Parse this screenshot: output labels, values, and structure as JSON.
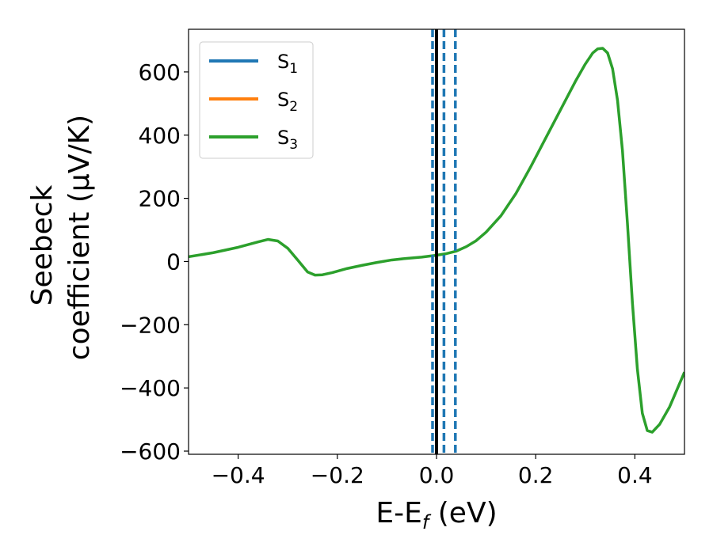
{
  "chart_data": {
    "type": "line",
    "xlabel": {
      "main": "E-E",
      "sub": "f",
      "unit": " (eV)"
    },
    "ylabel": {
      "line1": "Seebeck",
      "line2": "coefficient  (μV/K)"
    },
    "xlim": [
      -0.5,
      0.5
    ],
    "ylim": [
      -610,
      735
    ],
    "x_ticks": [
      {
        "value": -0.4,
        "label": "−0.4"
      },
      {
        "value": -0.2,
        "label": "−0.2"
      },
      {
        "value": 0.0,
        "label": "0.0"
      },
      {
        "value": 0.2,
        "label": "0.2"
      },
      {
        "value": 0.4,
        "label": "0.4"
      }
    ],
    "y_ticks": [
      {
        "value": -600,
        "label": "−600"
      },
      {
        "value": -400,
        "label": "−400"
      },
      {
        "value": -200,
        "label": "−200"
      },
      {
        "value": 0,
        "label": "0"
      },
      {
        "value": 200,
        "label": "200"
      },
      {
        "value": 400,
        "label": "400"
      },
      {
        "value": 600,
        "label": "600"
      }
    ],
    "legend": {
      "placement": "upper-left",
      "entries": [
        {
          "base": "S",
          "sub": "1",
          "color": "#1f77b4"
        },
        {
          "base": "S",
          "sub": "2",
          "color": "#ff7f0e"
        },
        {
          "base": "S",
          "sub": "3",
          "color": "#2ca02c"
        }
      ]
    },
    "vertical_lines": [
      {
        "x": 0.0,
        "style": "solid",
        "color": "#000000"
      },
      {
        "x": -0.008,
        "style": "dashed",
        "color": "#1f77b4"
      },
      {
        "x": 0.015,
        "style": "dashed",
        "color": "#1f77b4"
      },
      {
        "x": 0.038,
        "style": "dashed",
        "color": "#1f77b4"
      }
    ],
    "series": [
      {
        "color": "#2ca02c",
        "x": [
          -0.5,
          -0.45,
          -0.4,
          -0.36,
          -0.34,
          -0.32,
          -0.3,
          -0.28,
          -0.26,
          -0.245,
          -0.23,
          -0.21,
          -0.18,
          -0.15,
          -0.12,
          -0.09,
          -0.06,
          -0.03,
          0.0,
          0.02,
          0.04,
          0.06,
          0.08,
          0.1,
          0.13,
          0.16,
          0.19,
          0.22,
          0.25,
          0.28,
          0.3,
          0.315,
          0.325,
          0.335,
          0.345,
          0.355,
          0.365,
          0.375,
          0.385,
          0.395,
          0.405,
          0.415,
          0.425,
          0.435,
          0.45,
          0.47,
          0.5
        ],
        "y": [
          15,
          28,
          45,
          62,
          70,
          65,
          42,
          5,
          -33,
          -43,
          -42,
          -35,
          -22,
          -12,
          -3,
          5,
          10,
          14,
          20,
          25,
          33,
          47,
          66,
          93,
          145,
          215,
          300,
          390,
          480,
          570,
          625,
          660,
          673,
          675,
          660,
          610,
          510,
          350,
          120,
          -130,
          -340,
          -480,
          -535,
          -540,
          -515,
          -460,
          -350
        ]
      }
    ]
  }
}
